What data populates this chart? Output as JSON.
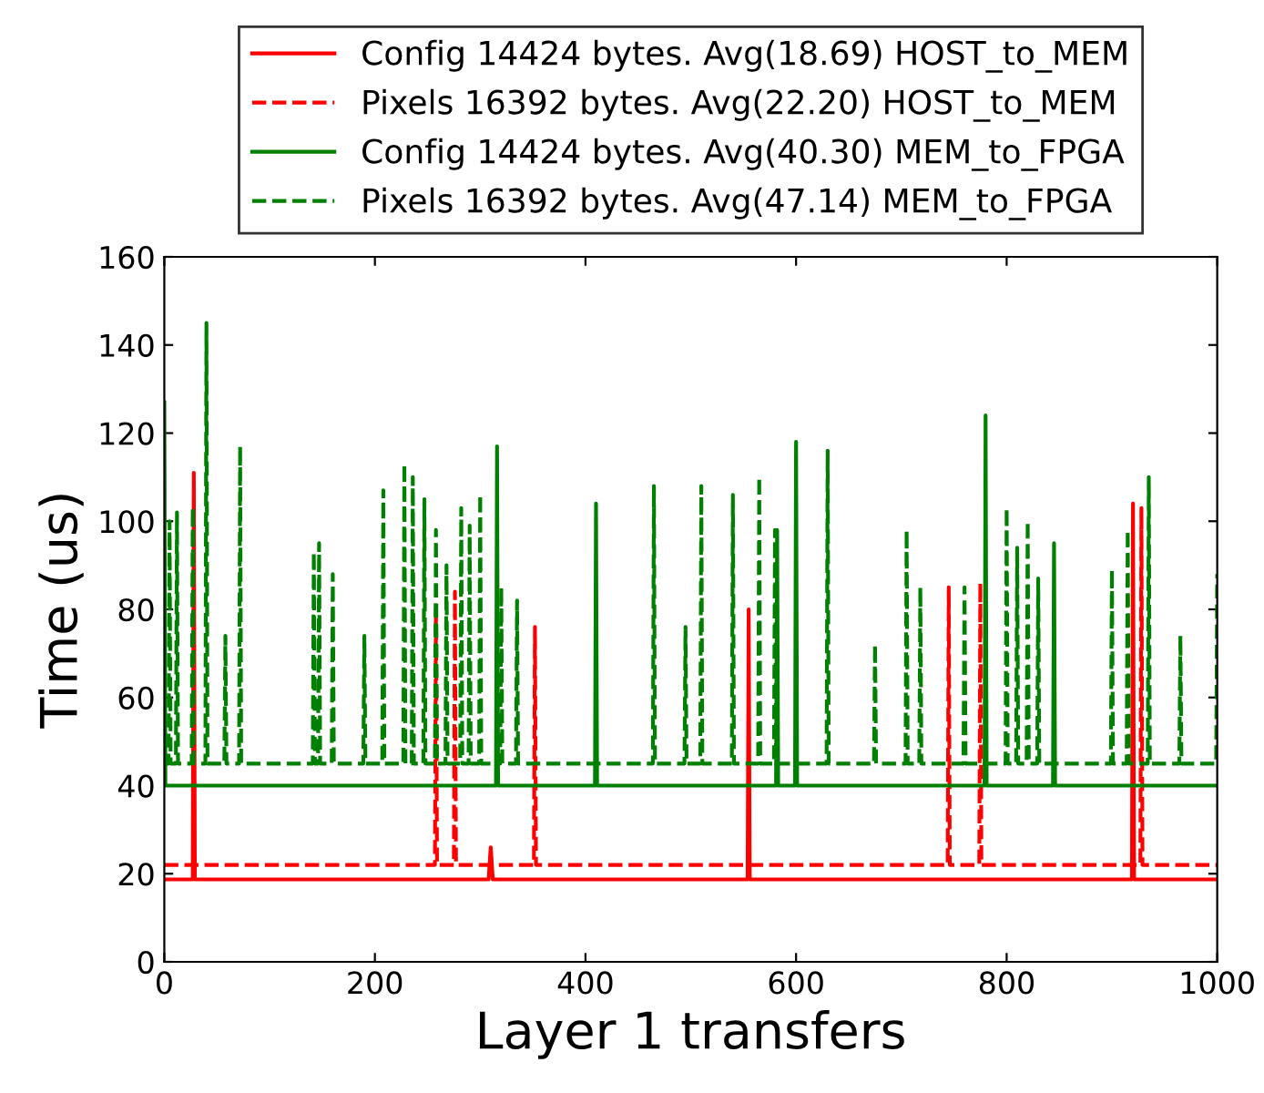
{
  "chart_data": {
    "type": "line",
    "xlabel": "Layer 1 transfers",
    "ylabel": "Time (us)",
    "xlim": [
      0,
      1000
    ],
    "xticks": [
      0,
      200,
      400,
      600,
      800,
      1000
    ],
    "ylim": [
      0,
      160
    ],
    "yticks": [
      0,
      20,
      40,
      60,
      80,
      100,
      120,
      140,
      160
    ],
    "grid": false,
    "legend": "top",
    "marker": "none",
    "series": [
      {
        "name": "Config 14424 bytes. Avg(18.69) HOST_to_MEM",
        "color": "#ff0000",
        "line_style": "solid",
        "x": [
          0,
          27,
          28,
          29,
          308,
          310,
          312,
          554,
          555,
          556,
          919,
          920,
          921,
          1000
        ],
        "values": [
          18.7,
          18.7,
          111,
          18.7,
          18.7,
          26,
          18.7,
          18.7,
          80,
          18.7,
          18.7,
          104,
          18.7,
          18.7
        ]
      },
      {
        "name": "Pixels 16392 bytes. Avg(22.20) HOST_to_MEM",
        "color": "#ff0000",
        "line_style": "dashed",
        "x": [
          0,
          257,
          258,
          259,
          275,
          276,
          277,
          351,
          352,
          353,
          744,
          745,
          746,
          774,
          775,
          776,
          927,
          928,
          929,
          1000
        ],
        "values": [
          22,
          22,
          80,
          22,
          22,
          84,
          22,
          22,
          76,
          22,
          22,
          85,
          22,
          22,
          86,
          22,
          22,
          103,
          22,
          22
        ]
      },
      {
        "name": "Config 14424 bytes. Avg(40.30) MEM_to_FPGA",
        "color": "#008000",
        "line_style": "solid",
        "x": [
          0,
          1,
          315,
          316,
          317,
          409,
          410,
          411,
          581,
          582,
          583,
          599,
          600,
          601,
          779,
          780,
          781,
          844,
          845,
          846,
          1000
        ],
        "values": [
          127,
          40,
          40,
          117,
          40,
          40,
          104,
          40,
          40,
          98,
          40,
          40,
          118,
          40,
          40,
          124,
          40,
          40,
          95,
          40,
          40
        ]
      },
      {
        "name": "Pixels 16392 bytes. Avg(47.14) MEM_to_FPGA",
        "color": "#008000",
        "line_style": "dashed",
        "x": [
          0,
          4,
          5,
          6,
          11,
          12,
          13,
          26,
          27,
          28,
          39,
          40,
          41,
          57,
          58,
          59,
          71,
          72,
          73,
          141,
          142,
          143,
          146,
          147,
          148,
          159,
          160,
          161,
          189,
          190,
          191,
          207,
          208,
          209,
          227,
          228,
          229,
          235,
          236,
          237,
          246,
          247,
          248,
          257,
          258,
          259,
          267,
          268,
          269,
          281,
          282,
          283,
          289,
          290,
          291,
          299,
          300,
          301,
          319,
          320,
          321,
          334,
          335,
          336,
          464,
          465,
          466,
          494,
          495,
          496,
          509,
          510,
          511,
          539,
          540,
          541,
          564,
          565,
          566,
          579,
          580,
          581,
          629,
          630,
          631,
          674,
          675,
          676,
          704,
          705,
          706,
          717,
          718,
          719,
          759,
          760,
          761,
          799,
          800,
          801,
          809,
          810,
          811,
          819,
          820,
          821,
          829,
          830,
          831,
          899,
          900,
          901,
          914,
          915,
          916,
          934,
          935,
          936,
          964,
          965,
          966,
          999,
          1000
        ],
        "values": [
          45,
          45,
          100,
          45,
          45,
          102,
          45,
          45,
          103,
          45,
          45,
          145,
          45,
          45,
          74,
          45,
          45,
          117,
          45,
          45,
          93,
          45,
          45,
          95,
          45,
          45,
          88,
          45,
          45,
          74,
          45,
          45,
          107,
          45,
          45,
          113,
          45,
          45,
          110,
          45,
          45,
          105,
          45,
          45,
          98,
          45,
          45,
          90,
          45,
          45,
          103,
          45,
          45,
          99,
          45,
          45,
          106,
          45,
          45,
          85,
          45,
          45,
          82,
          45,
          45,
          108,
          45,
          45,
          76,
          45,
          45,
          108,
          45,
          45,
          106,
          45,
          45,
          110,
          45,
          45,
          98,
          45,
          45,
          116,
          45,
          45,
          72,
          45,
          45,
          98,
          45,
          45,
          85,
          45,
          45,
          85,
          45,
          45,
          103,
          45,
          45,
          94,
          45,
          45,
          100,
          45,
          45,
          87,
          45,
          45,
          89,
          45,
          45,
          98,
          45,
          45,
          110,
          45,
          45,
          74,
          45,
          45,
          88
        ]
      }
    ]
  }
}
